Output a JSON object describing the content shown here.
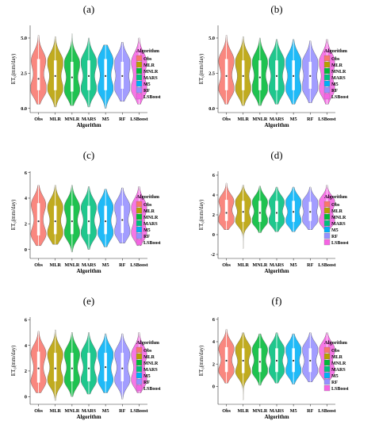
{
  "colors": {
    "Obs": "#f8766d",
    "MLR": "#b79f00",
    "MNLR": "#00ba38",
    "MARS": "#00bf7d",
    "M5": "#00b0f6",
    "RF": "#9590ff",
    "LSBoost": "#f564e3"
  },
  "chart_data": [
    {
      "type": "violin",
      "panel_label": "(a)",
      "xlabel": "Algorithm",
      "ylabel": "ET₀(mm/day)",
      "categories": [
        "Obs",
        "MLR",
        "MNLR",
        "MARS",
        "M5",
        "RF",
        "LSBoost"
      ],
      "yticks": [
        "0.0",
        "2.5",
        "5.0"
      ],
      "ylim": [
        -0.3,
        5.9
      ],
      "series": [
        {
          "name": "Obs",
          "min": 0.3,
          "q1": 1.3,
          "median": 2.1,
          "q3": 3.5,
          "max": 5.2
        },
        {
          "name": "MLR",
          "min": 0.1,
          "q1": 1.3,
          "median": 2.3,
          "q3": 3.4,
          "max": 5.1
        },
        {
          "name": "MNLR",
          "min": 0.2,
          "q1": 1.2,
          "median": 2.2,
          "q3": 3.3,
          "max": 5.3
        },
        {
          "name": "MARS",
          "min": 0.1,
          "q1": 1.3,
          "median": 2.3,
          "q3": 3.4,
          "max": 5.0
        },
        {
          "name": "M5",
          "min": 0.0,
          "q1": 1.3,
          "median": 2.3,
          "q3": 3.5,
          "max": 4.5
        },
        {
          "name": "RF",
          "min": 0.5,
          "q1": 1.4,
          "median": 2.3,
          "q3": 3.3,
          "max": 4.7
        },
        {
          "name": "LSBoost",
          "min": 0.3,
          "q1": 1.3,
          "median": 2.2,
          "q3": 3.4,
          "max": 5.0
        }
      ],
      "legend": {
        "title": "Algorithm",
        "position": "right"
      }
    },
    {
      "type": "violin",
      "panel_label": "(b)",
      "xlabel": "Algorithm",
      "ylabel": "ET₀(mm/day)",
      "categories": [
        "Obs",
        "MLR",
        "MNLR",
        "MARS",
        "M5",
        "RF",
        "LSBoost"
      ],
      "yticks": [
        "0.0",
        "2.5",
        "5.0"
      ],
      "ylim": [
        -0.3,
        5.9
      ],
      "series": [
        {
          "name": "Obs",
          "min": 0.3,
          "q1": 1.3,
          "median": 2.3,
          "q3": 3.5,
          "max": 5.2
        },
        {
          "name": "MLR",
          "min": 0.2,
          "q1": 1.3,
          "median": 2.3,
          "q3": 3.4,
          "max": 5.1
        },
        {
          "name": "MNLR",
          "min": 0.2,
          "q1": 1.3,
          "median": 2.2,
          "q3": 3.4,
          "max": 5.0
        },
        {
          "name": "MARS",
          "min": 0.3,
          "q1": 1.3,
          "median": 2.3,
          "q3": 3.4,
          "max": 4.9
        },
        {
          "name": "M5",
          "min": 0.3,
          "q1": 1.3,
          "median": 2.3,
          "q3": 3.4,
          "max": 4.9
        },
        {
          "name": "RF",
          "min": 0.4,
          "q1": 1.4,
          "median": 2.3,
          "q3": 3.3,
          "max": 4.8
        },
        {
          "name": "LSBoost",
          "min": 0.3,
          "q1": 1.3,
          "median": 2.3,
          "q3": 3.4,
          "max": 4.9
        }
      ],
      "legend": {
        "title": "Algorithm",
        "position": "right"
      }
    },
    {
      "type": "violin",
      "panel_label": "(c)",
      "xlabel": "Algorithm",
      "ylabel": "ET₀(mm/day)",
      "categories": [
        "Obs",
        "MLR",
        "MNLR",
        "MARS",
        "M5",
        "RF",
        "LSBoost"
      ],
      "yticks": [
        "0",
        "2",
        "4",
        "6"
      ],
      "ylim": [
        -0.7,
        6.1
      ],
      "series": [
        {
          "name": "Obs",
          "min": 0.3,
          "q1": 1.1,
          "median": 2.2,
          "q3": 3.6,
          "max": 5.0
        },
        {
          "name": "MLR",
          "min": 0.4,
          "q1": 1.2,
          "median": 2.2,
          "q3": 3.4,
          "max": 5.0
        },
        {
          "name": "MNLR",
          "min": -0.2,
          "q1": 1.2,
          "median": 2.2,
          "q3": 3.4,
          "max": 5.0
        },
        {
          "name": "MARS",
          "min": 0.0,
          "q1": 1.2,
          "median": 2.2,
          "q3": 3.4,
          "max": 4.9
        },
        {
          "name": "M5",
          "min": 0.2,
          "q1": 1.2,
          "median": 2.2,
          "q3": 3.4,
          "max": 4.7
        },
        {
          "name": "RF",
          "min": 0.5,
          "q1": 1.3,
          "median": 2.3,
          "q3": 3.4,
          "max": 4.8
        },
        {
          "name": "LSBoost",
          "min": 0.3,
          "q1": 1.2,
          "median": 2.2,
          "q3": 3.4,
          "max": 4.9
        }
      ],
      "legend": {
        "title": "Algorithm",
        "position": "right"
      }
    },
    {
      "type": "violin",
      "panel_label": "(d)",
      "xlabel": "Algorithm",
      "ylabel": "ET₀(mm/day)",
      "categories": [
        "Obs",
        "MLR",
        "MNLR",
        "MARS",
        "M5",
        "RF",
        "LSBoost"
      ],
      "yticks": [
        "-2",
        "0",
        "2",
        "4",
        "6"
      ],
      "ylim": [
        -2.4,
        6.4
      ],
      "series": [
        {
          "name": "Obs",
          "min": 0.5,
          "q1": 1.4,
          "median": 2.2,
          "q3": 3.5,
          "max": 5.2
        },
        {
          "name": "MLR",
          "min": -1.4,
          "q1": 1.3,
          "median": 2.3,
          "q3": 3.4,
          "max": 5.0
        },
        {
          "name": "MNLR",
          "min": 0.2,
          "q1": 1.3,
          "median": 2.2,
          "q3": 3.4,
          "max": 4.9
        },
        {
          "name": "MARS",
          "min": 0.3,
          "q1": 1.3,
          "median": 2.2,
          "q3": 3.4,
          "max": 4.8
        },
        {
          "name": "M5",
          "min": 0.3,
          "q1": 1.3,
          "median": 2.3,
          "q3": 3.4,
          "max": 4.8
        },
        {
          "name": "RF",
          "min": 0.5,
          "q1": 1.4,
          "median": 2.3,
          "q3": 3.3,
          "max": 4.8
        },
        {
          "name": "LSBoost",
          "min": 0.4,
          "q1": 1.3,
          "median": 2.3,
          "q3": 3.4,
          "max": 5.0
        }
      ],
      "legend": {
        "title": "Algorithm",
        "position": "right"
      }
    },
    {
      "type": "violin",
      "panel_label": "(e)",
      "xlabel": "Algorithm",
      "ylabel": "ET₀(mm/day)",
      "categories": [
        "Obs",
        "MLR",
        "MNLR",
        "MARS",
        "M5",
        "RF",
        "LSBoost"
      ],
      "yticks": [
        "0",
        "2",
        "4",
        "6"
      ],
      "ylim": [
        -0.6,
        6.2
      ],
      "series": [
        {
          "name": "Obs",
          "min": 0.3,
          "q1": 1.1,
          "median": 2.2,
          "q3": 3.5,
          "max": 5.1
        },
        {
          "name": "MLR",
          "min": -0.3,
          "q1": 1.2,
          "median": 2.2,
          "q3": 3.4,
          "max": 5.2
        },
        {
          "name": "MNLR",
          "min": 0.0,
          "q1": 1.2,
          "median": 2.2,
          "q3": 3.4,
          "max": 5.0
        },
        {
          "name": "MARS",
          "min": 0.2,
          "q1": 1.2,
          "median": 2.2,
          "q3": 3.4,
          "max": 5.0
        },
        {
          "name": "M5",
          "min": 0.3,
          "q1": 1.2,
          "median": 2.3,
          "q3": 3.4,
          "max": 4.9
        },
        {
          "name": "RF",
          "min": -0.2,
          "q1": 1.2,
          "median": 2.2,
          "q3": 3.4,
          "max": 4.9
        },
        {
          "name": "LSBoost",
          "min": 0.3,
          "q1": 1.2,
          "median": 2.2,
          "q3": 3.4,
          "max": 5.0
        }
      ],
      "legend": {
        "title": "Algorithm",
        "position": "right"
      }
    },
    {
      "type": "violin",
      "panel_label": "(f)",
      "xlabel": "Algorithm",
      "ylabel": "ET₀(mm/day)",
      "categories": [
        "Obs",
        "MLR",
        "MNLR",
        "MARS",
        "M5",
        "RF",
        "LSBoost"
      ],
      "yticks": [
        "0",
        "2",
        "4",
        "6"
      ],
      "ylim": [
        -1.6,
        6.2
      ],
      "series": [
        {
          "name": "Obs",
          "min": 0.3,
          "q1": 1.3,
          "median": 2.3,
          "q3": 3.5,
          "max": 5.1
        },
        {
          "name": "MLR",
          "min": -1.2,
          "q1": 1.2,
          "median": 2.3,
          "q3": 3.4,
          "max": 4.8
        },
        {
          "name": "MNLR",
          "min": 0.1,
          "q1": 1.3,
          "median": 2.2,
          "q3": 3.4,
          "max": 4.7
        },
        {
          "name": "MARS",
          "min": 0.3,
          "q1": 1.3,
          "median": 2.3,
          "q3": 3.4,
          "max": 4.8
        },
        {
          "name": "M5",
          "min": 0.2,
          "q1": 1.3,
          "median": 2.3,
          "q3": 3.4,
          "max": 4.7
        },
        {
          "name": "RF",
          "min": 0.4,
          "q1": 1.3,
          "median": 2.3,
          "q3": 3.4,
          "max": 4.8
        },
        {
          "name": "LSBoost",
          "min": 0.3,
          "q1": 1.3,
          "median": 2.3,
          "q3": 3.4,
          "max": 4.8
        }
      ],
      "legend": {
        "title": "Algorithm",
        "position": "right"
      }
    }
  ]
}
